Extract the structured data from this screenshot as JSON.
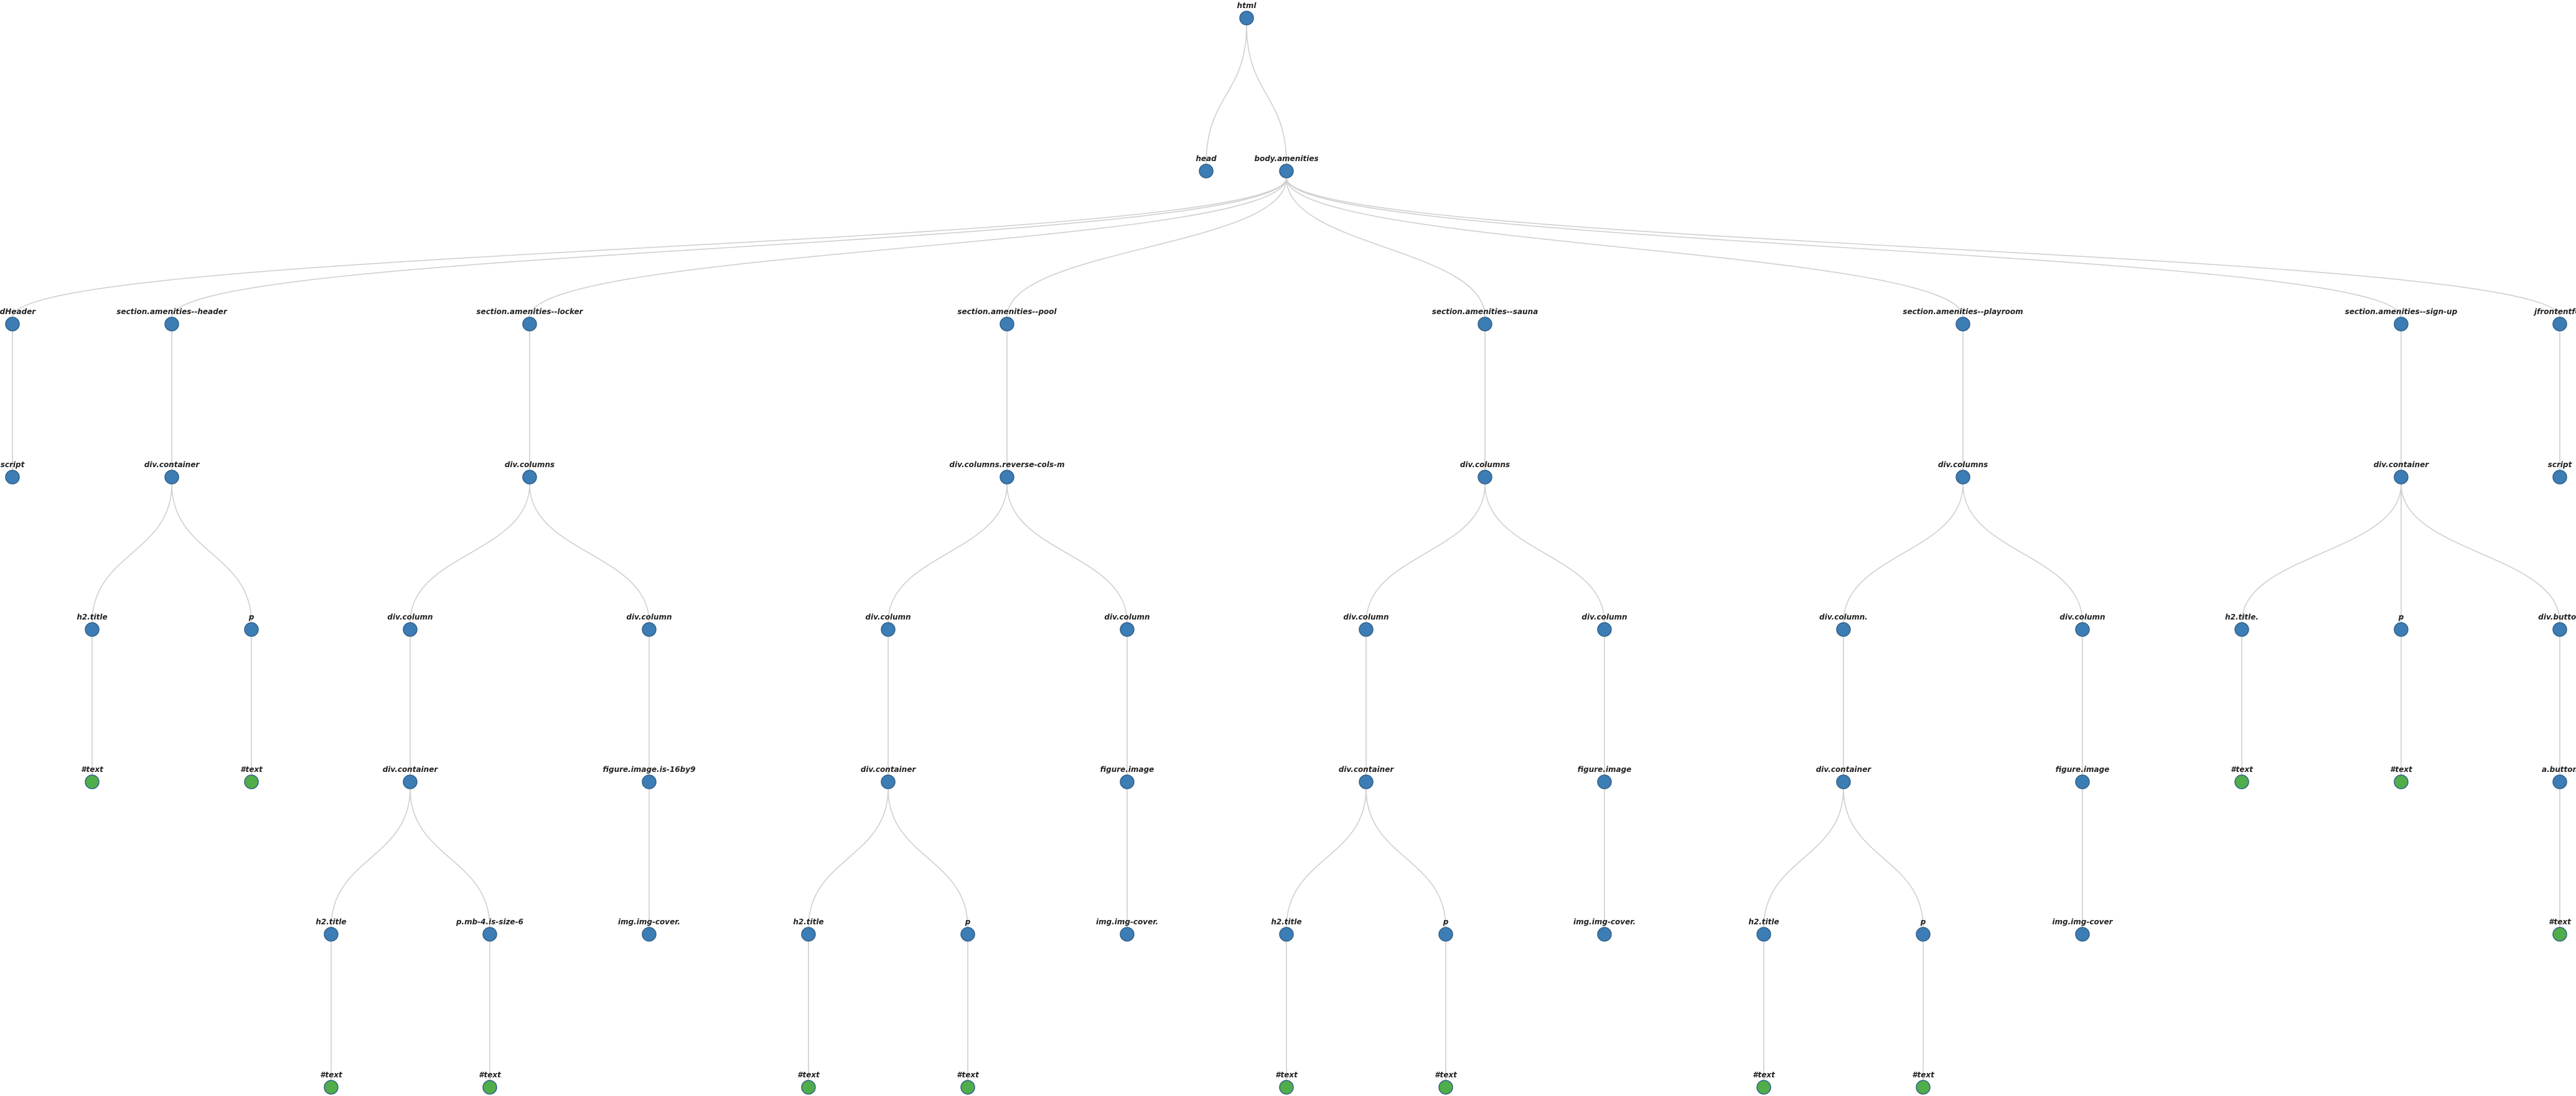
{
  "colors": {
    "element_node": "#3d7db5",
    "text_node": "#4fae4a",
    "edge": "#cfcfcf",
    "label": "#222222"
  },
  "tree": {
    "label": "html",
    "kind": "element",
    "children": [
      {
        "label": "head",
        "kind": "element",
        "children": []
      },
      {
        "label": "body.amenities",
        "kind": "element",
        "children": [
          {
            "label": "dedHeader",
            "kind": "element",
            "children": [
              {
                "label": "script",
                "kind": "element",
                "children": []
              }
            ]
          },
          {
            "label": "section.amenities--header",
            "kind": "element",
            "children": [
              {
                "label": "div.container",
                "kind": "element",
                "children": [
                  {
                    "label": "h2.title",
                    "kind": "element",
                    "children": [
                      {
                        "label": "#text",
                        "kind": "text",
                        "children": []
                      }
                    ]
                  },
                  {
                    "label": "p",
                    "kind": "element",
                    "children": [
                      {
                        "label": "#text",
                        "kind": "text",
                        "children": []
                      }
                    ]
                  }
                ]
              }
            ]
          },
          {
            "label": "section.amenities--locker",
            "kind": "element",
            "children": [
              {
                "label": "div.columns",
                "kind": "element",
                "children": [
                  {
                    "label": "div.column",
                    "kind": "element",
                    "children": [
                      {
                        "label": "div.container",
                        "kind": "element",
                        "children": [
                          {
                            "label": "h2.title",
                            "kind": "element",
                            "children": [
                              {
                                "label": "#text",
                                "kind": "text",
                                "children": []
                              }
                            ]
                          },
                          {
                            "label": "p.mb-4.is-size-6",
                            "kind": "element",
                            "children": [
                              {
                                "label": "#text",
                                "kind": "text",
                                "children": []
                              }
                            ]
                          }
                        ]
                      }
                    ]
                  },
                  {
                    "label": "div.column",
                    "kind": "element",
                    "children": [
                      {
                        "label": "figure.image.is-16by9",
                        "kind": "element",
                        "children": [
                          {
                            "label": "img.img-cover.",
                            "kind": "element",
                            "children": []
                          }
                        ]
                      }
                    ]
                  }
                ]
              }
            ]
          },
          {
            "label": "section.amenities--pool",
            "kind": "element",
            "children": [
              {
                "label": "div.columns.reverse-cols-m",
                "kind": "element",
                "children": [
                  {
                    "label": "div.column",
                    "kind": "element",
                    "children": [
                      {
                        "label": "div.container",
                        "kind": "element",
                        "children": [
                          {
                            "label": "h2.title",
                            "kind": "element",
                            "children": [
                              {
                                "label": "#text",
                                "kind": "text",
                                "children": []
                              }
                            ]
                          },
                          {
                            "label": "p",
                            "kind": "element",
                            "children": [
                              {
                                "label": "#text",
                                "kind": "text",
                                "children": []
                              }
                            ]
                          }
                        ]
                      }
                    ]
                  },
                  {
                    "label": "div.column",
                    "kind": "element",
                    "children": [
                      {
                        "label": "figure.image",
                        "kind": "element",
                        "children": [
                          {
                            "label": "img.img-cover.",
                            "kind": "element",
                            "children": []
                          }
                        ]
                      }
                    ]
                  }
                ]
              }
            ]
          },
          {
            "label": "section.amenities--sauna",
            "kind": "element",
            "children": [
              {
                "label": "div.columns",
                "kind": "element",
                "children": [
                  {
                    "label": "div.column",
                    "kind": "element",
                    "children": [
                      {
                        "label": "div.container",
                        "kind": "element",
                        "children": [
                          {
                            "label": "h2.title",
                            "kind": "element",
                            "children": [
                              {
                                "label": "#text",
                                "kind": "text",
                                "children": []
                              }
                            ]
                          },
                          {
                            "label": "p",
                            "kind": "element",
                            "children": [
                              {
                                "label": "#text",
                                "kind": "text",
                                "children": []
                              }
                            ]
                          }
                        ]
                      }
                    ]
                  },
                  {
                    "label": "div.column",
                    "kind": "element",
                    "children": [
                      {
                        "label": "figure.image",
                        "kind": "element",
                        "children": [
                          {
                            "label": "img.img-cover.",
                            "kind": "element",
                            "children": []
                          }
                        ]
                      }
                    ]
                  }
                ]
              }
            ]
          },
          {
            "label": "section.amenities--playroom",
            "kind": "element",
            "children": [
              {
                "label": "div.columns",
                "kind": "element",
                "children": [
                  {
                    "label": "div.column.",
                    "kind": "element",
                    "children": [
                      {
                        "label": "div.container",
                        "kind": "element",
                        "children": [
                          {
                            "label": "h2.title",
                            "kind": "element",
                            "children": [
                              {
                                "label": "#text",
                                "kind": "text",
                                "children": []
                              }
                            ]
                          },
                          {
                            "label": "p",
                            "kind": "element",
                            "children": [
                              {
                                "label": "#text",
                                "kind": "text",
                                "children": []
                              }
                            ]
                          }
                        ]
                      }
                    ]
                  },
                  {
                    "label": "div.column",
                    "kind": "element",
                    "children": [
                      {
                        "label": "figure.image",
                        "kind": "element",
                        "children": [
                          {
                            "label": "img.img-cover",
                            "kind": "element",
                            "children": []
                          }
                        ]
                      }
                    ]
                  }
                ]
              }
            ]
          },
          {
            "label": "section.amenities--sign-up",
            "kind": "element",
            "children": [
              {
                "label": "div.container",
                "kind": "element",
                "children": [
                  {
                    "label": "h2.title.",
                    "kind": "element",
                    "children": [
                      {
                        "label": "#text",
                        "kind": "text",
                        "children": []
                      }
                    ]
                  },
                  {
                    "label": "p",
                    "kind": "element",
                    "children": [
                      {
                        "label": "#text",
                        "kind": "text",
                        "children": []
                      }
                    ]
                  },
                  {
                    "label": "div.button",
                    "kind": "element",
                    "children": [
                      {
                        "label": "a.button",
                        "kind": "element",
                        "children": [
                          {
                            "label": "#text",
                            "kind": "text",
                            "children": []
                          }
                        ]
                      }
                    ]
                  }
                ]
              }
            ]
          },
          {
            "label": "jfrontentfoo",
            "kind": "element",
            "children": [
              {
                "label": "script",
                "kind": "element",
                "children": []
              }
            ]
          }
        ]
      }
    ]
  }
}
